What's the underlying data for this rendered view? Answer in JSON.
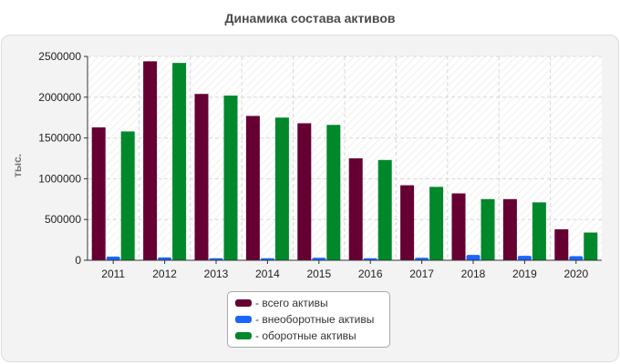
{
  "chart_data": {
    "type": "bar",
    "title": "Динамика состава активов",
    "ylabel": "тыс.",
    "xlabel": "",
    "categories": [
      "2011",
      "2012",
      "2013",
      "2014",
      "2015",
      "2016",
      "2017",
      "2018",
      "2019",
      "2020"
    ],
    "ylim": [
      0,
      2500000
    ],
    "yticks": [
      0,
      500000,
      1000000,
      1500000,
      2000000,
      2500000
    ],
    "grid": true,
    "legend_position": "bottom",
    "series": [
      {
        "name": "- всего активы",
        "color": "#660033",
        "values": [
          1630000,
          2440000,
          2040000,
          1770000,
          1680000,
          1250000,
          920000,
          820000,
          750000,
          380000
        ]
      },
      {
        "name": "- внеоборотные активы",
        "color": "#1a66ff",
        "values": [
          45000,
          35000,
          25000,
          25000,
          30000,
          25000,
          30000,
          65000,
          55000,
          50000
        ]
      },
      {
        "name": "- оборотные активы",
        "color": "#00882b",
        "values": [
          1580000,
          2420000,
          2020000,
          1750000,
          1660000,
          1230000,
          900000,
          750000,
          710000,
          340000
        ]
      }
    ]
  }
}
